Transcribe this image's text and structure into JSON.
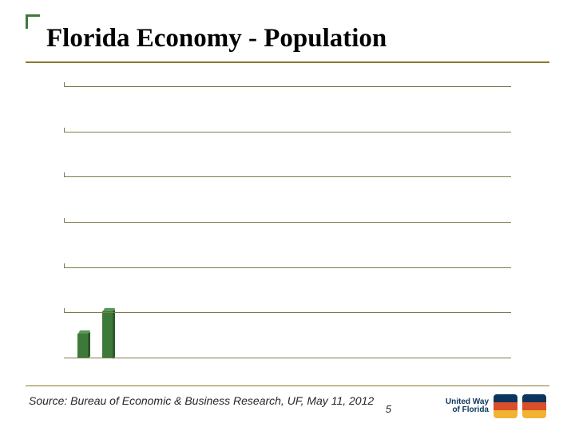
{
  "title": {
    "text": "Florida Economy - Population",
    "fontsize": 33,
    "color": "#000000",
    "underline_color": "#8a7a2f"
  },
  "accent": {
    "color": "#3d7a3a"
  },
  "chart": {
    "type": "bar",
    "ylim": [
      0,
      6
    ],
    "grid_levels": [
      1,
      2,
      3,
      4,
      5,
      6
    ],
    "grid_color": "#7f7a4a",
    "baseline_color": "#7f7a4a",
    "background": "#ffffff",
    "bars": [
      {
        "x_pct": 3.0,
        "width_pct": 2.4,
        "value": 0.55,
        "fill": "#3d7a3a",
        "top": "#5a9957",
        "side": "#2c5a29"
      },
      {
        "x_pct": 8.5,
        "width_pct": 2.4,
        "value": 1.05,
        "fill": "#3d7a3a",
        "top": "#5a9957",
        "side": "#2c5a29"
      }
    ]
  },
  "footer": {
    "rule_color": "#8a7a2f",
    "source_text": "Source:  Bureau of Economic & Business Research, UF,  May 11, 2012",
    "source_fontsize": 14,
    "source_color": "#262626",
    "page_number": "5",
    "page_fontsize": 13
  },
  "logos": {
    "uw_text_line1": "United Way",
    "uw_text_line2": "of Florida",
    "uw_text_fontsize": 10,
    "uw_text_color": "#0b355f",
    "badge_top": "#0b355f",
    "badge_mid": "#d94f2a",
    "badge_bot": "#f2b233"
  }
}
